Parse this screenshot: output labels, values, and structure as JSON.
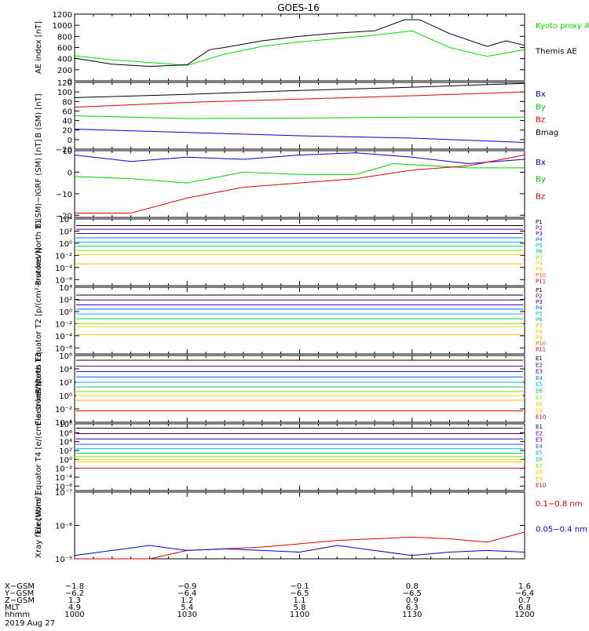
{
  "title": "GOES-16",
  "date": "2019 Aug 27",
  "chart_data": [
    {
      "type": "line",
      "ylabel": "AE index [nT]",
      "ylim": [
        0,
        1200
      ],
      "yticks": [
        {
          "v": 0,
          "label": "0"
        },
        {
          "v": 200,
          "label": "200"
        },
        {
          "v": 400,
          "label": "400"
        },
        {
          "v": 600,
          "label": "600"
        },
        {
          "v": 800,
          "label": "800"
        },
        {
          "v": 1000,
          "label": "1000"
        },
        {
          "v": 1200,
          "label": "1200"
        }
      ],
      "series": [
        {
          "name": "Kyoto proxy AE",
          "color": "#00dd00",
          "x": [
            1000,
            1010,
            1020,
            1030,
            1040,
            1050,
            1100,
            1110,
            1120,
            1130,
            1140,
            1150,
            1200
          ],
          "y": [
            450,
            380,
            330,
            280,
            480,
            620,
            700,
            760,
            820,
            900,
            600,
            440,
            560
          ]
        },
        {
          "name": "Themis AE",
          "color": "#000000",
          "x": [
            1000,
            1010,
            1020,
            1030,
            1036,
            1040,
            1050,
            1100,
            1110,
            1120,
            1128,
            1132,
            1140,
            1150,
            1155,
            1200
          ],
          "y": [
            410,
            300,
            260,
            290,
            560,
            600,
            720,
            800,
            860,
            900,
            1100,
            1100,
            850,
            620,
            720,
            640
          ]
        }
      ]
    },
    {
      "type": "line",
      "ylabel": "B (SM) [nT]",
      "ylim": [
        -20,
        120
      ],
      "yticks": [
        {
          "v": -20,
          "label": "−20"
        },
        {
          "v": 0,
          "label": "0"
        },
        {
          "v": 20,
          "label": "20"
        },
        {
          "v": 40,
          "label": "40"
        },
        {
          "v": 60,
          "label": "60"
        },
        {
          "v": 80,
          "label": "80"
        },
        {
          "v": 100,
          "label": "100"
        },
        {
          "v": 120,
          "label": "120"
        }
      ],
      "series": [
        {
          "name": "Bx",
          "color": "#0000cc",
          "x": [
            1000,
            1030,
            1100,
            1130,
            1200
          ],
          "y": [
            22,
            15,
            8,
            3,
            -6
          ]
        },
        {
          "name": "By",
          "color": "#00cc00",
          "x": [
            1000,
            1030,
            1100,
            1130,
            1200
          ],
          "y": [
            50,
            44,
            45,
            47,
            47
          ]
        },
        {
          "name": "Bz",
          "color": "#dd0000",
          "x": [
            1000,
            1030,
            1100,
            1130,
            1200
          ],
          "y": [
            68,
            78,
            85,
            92,
            100
          ]
        },
        {
          "name": "Bmag",
          "color": "#000000",
          "x": [
            1000,
            1030,
            1100,
            1130,
            1200
          ],
          "y": [
            88,
            95,
            103,
            110,
            118
          ]
        }
      ]
    },
    {
      "type": "line",
      "ylabel": "B (SM)−IGRF (SM) [nT]",
      "ylim": [
        -21,
        10
      ],
      "yticks": [
        {
          "v": -20,
          "label": "−20"
        },
        {
          "v": -10,
          "label": "−10"
        },
        {
          "v": 0,
          "label": "0"
        },
        {
          "v": 10,
          "label": "10"
        }
      ],
      "series": [
        {
          "name": "Bx",
          "color": "#0000cc",
          "x": [
            1000,
            1015,
            1030,
            1045,
            1100,
            1115,
            1130,
            1145,
            1200
          ],
          "y": [
            8,
            5,
            7,
            6,
            8,
            9,
            7,
            4,
            6
          ]
        },
        {
          "name": "By",
          "color": "#00cc00",
          "x": [
            1000,
            1015,
            1030,
            1045,
            1100,
            1115,
            1125,
            1145,
            1200
          ],
          "y": [
            -2,
            -3,
            -5,
            0,
            -1,
            -1,
            4,
            2,
            2
          ]
        },
        {
          "name": "Bz",
          "color": "#dd0000",
          "x": [
            1000,
            1015,
            1030,
            1045,
            1100,
            1115,
            1130,
            1145,
            1200
          ],
          "y": [
            -19,
            -19,
            -12,
            -7,
            -5,
            -3,
            1,
            3,
            8
          ]
        }
      ]
    },
    {
      "type": "line",
      "log": true,
      "ylabel": "Protons North T1",
      "ylim": [
        -7,
        4
      ],
      "yticks": [
        {
          "v": 4,
          "label": "10⁴"
        },
        {
          "v": 2,
          "label": "10²"
        },
        {
          "v": 0,
          "label": "10⁰"
        },
        {
          "v": -2,
          "label": "10⁻²"
        },
        {
          "v": -4,
          "label": "10⁻⁴"
        },
        {
          "v": -6,
          "label": "10⁻⁶"
        }
      ],
      "channels": [
        {
          "name": "P1",
          "color": "#000000",
          "level": 2.9
        },
        {
          "name": "P2",
          "color": "#550088",
          "level": 2.3
        },
        {
          "name": "P3",
          "color": "#2200cc",
          "level": 1.6
        },
        {
          "name": "P4",
          "color": "#0066ff",
          "level": 0.9
        },
        {
          "name": "P5",
          "color": "#00bbdd",
          "level": 0.2
        },
        {
          "name": "P6",
          "color": "#00cc66",
          "level": -0.5
        },
        {
          "name": "P7",
          "color": "#88dd00",
          "level": -1.2
        },
        {
          "name": "P8",
          "color": "#dddd00",
          "level": -1.9
        },
        {
          "name": "P9",
          "color": "#ffbb00",
          "level": -3.4
        },
        {
          "name": "P10",
          "color": "#ff6600",
          "level": null
        },
        {
          "name": "P11",
          "color": "#dd0000",
          "level": null
        }
      ]
    },
    {
      "type": "line",
      "log": true,
      "ylabel": "Protons Equator T2 [p/(cm²-s-sr-keV)]",
      "ylim": [
        -7,
        4
      ],
      "yticks": [
        {
          "v": 4,
          "label": "10⁴"
        },
        {
          "v": 2,
          "label": "10²"
        },
        {
          "v": 0,
          "label": "10⁰"
        },
        {
          "v": -2,
          "label": "10⁻²"
        },
        {
          "v": -4,
          "label": "10⁻⁴"
        },
        {
          "v": -6,
          "label": "10⁻⁶"
        }
      ],
      "channels": [
        {
          "name": "P1",
          "color": "#000000",
          "level": 2.7
        },
        {
          "name": "P2",
          "color": "#550088",
          "level": 1.9
        },
        {
          "name": "P3",
          "color": "#2200cc",
          "level": 1.1
        },
        {
          "name": "P4",
          "color": "#0066ff",
          "level": 0.4
        },
        {
          "name": "P5",
          "color": "#00bbdd",
          "level": -0.4
        },
        {
          "name": "P6",
          "color": "#00cc66",
          "level": -1.2
        },
        {
          "name": "P7",
          "color": "#88dd00",
          "level": -2.0
        },
        {
          "name": "P8",
          "color": "#dddd00",
          "level": -2.5
        },
        {
          "name": "P9",
          "color": "#ffbb00",
          "level": -3.8
        },
        {
          "name": "P10",
          "color": "#ff6600",
          "level": null
        },
        {
          "name": "P11",
          "color": "#dd0000",
          "level": null
        }
      ]
    },
    {
      "type": "line",
      "log": true,
      "ylabel": "Electrons North T3",
      "ylim": [
        -4,
        6
      ],
      "yticks": [
        {
          "v": 6,
          "label": "10⁶"
        },
        {
          "v": 4,
          "label": "10⁴"
        },
        {
          "v": 2,
          "label": "10²"
        },
        {
          "v": 0,
          "label": "10⁰"
        },
        {
          "v": -2,
          "label": "10⁻²"
        },
        {
          "v": -4,
          "label": "10⁻⁴"
        }
      ],
      "channels": [
        {
          "name": "E1",
          "color": "#000000",
          "level": 5.3
        },
        {
          "name": "E2",
          "color": "#550088",
          "level": 4.4
        },
        {
          "name": "E3",
          "color": "#2200cc",
          "level": 3.6
        },
        {
          "name": "E4",
          "color": "#0066ff",
          "level": 2.8
        },
        {
          "name": "E5",
          "color": "#00bbdd",
          "level": 2.0
        },
        {
          "name": "E6",
          "color": "#00cc66",
          "level": 1.3
        },
        {
          "name": "E7",
          "color": "#88dd00",
          "level": 0.6
        },
        {
          "name": "E8",
          "color": "#dddd00",
          "level": 0.0
        },
        {
          "name": "E9",
          "color": "#ffbb00",
          "level": -0.7
        },
        {
          "name": "E10",
          "color": "#dd0000",
          "level": -2.3
        }
      ]
    },
    {
      "type": "line",
      "log": true,
      "ylabel": "Electrons Equator T4 [e/(cm²-s-sr-keV)]",
      "ylim": [
        -7,
        8
      ],
      "yticks": [
        {
          "v": 8,
          "label": "10⁸"
        },
        {
          "v": 6,
          "label": "10⁶"
        },
        {
          "v": 4,
          "label": "10⁴"
        },
        {
          "v": 2,
          "label": "10²"
        },
        {
          "v": 0,
          "label": "10⁰"
        },
        {
          "v": -2,
          "label": "10⁻²"
        },
        {
          "v": -4,
          "label": "10⁻⁴"
        },
        {
          "v": -6,
          "label": "10⁻⁶"
        }
      ],
      "channels": [
        {
          "name": "E1",
          "color": "#000000",
          "level": 7.0
        },
        {
          "name": "E2",
          "color": "#550088",
          "level": 5.8
        },
        {
          "name": "E3",
          "color": "#2200cc",
          "level": 4.6
        },
        {
          "name": "E4",
          "color": "#0066ff",
          "level": 3.4
        },
        {
          "name": "E5",
          "color": "#00bbdd",
          "level": 2.4
        },
        {
          "name": "E6",
          "color": "#00cc66",
          "level": 1.4
        },
        {
          "name": "E7",
          "color": "#88dd00",
          "level": 0.6
        },
        {
          "name": "E8",
          "color": "#dddd00",
          "level": -0.1
        },
        {
          "name": "E9",
          "color": "#ffbb00",
          "level": -0.6
        },
        {
          "name": "E10",
          "color": "#dd0000",
          "level": -2.0
        }
      ]
    },
    {
      "type": "line",
      "log": true,
      "ylabel": "Xray flux [W/m²]",
      "ylim": [
        -9,
        -7
      ],
      "yticks": [
        {
          "v": -7,
          "label": "10⁻⁷"
        },
        {
          "v": -8,
          "label": "10⁻⁸"
        },
        {
          "v": -9,
          "label": "10⁻⁹"
        }
      ],
      "series": [
        {
          "name": "0.1−0.8 nm",
          "color": "#dd0000",
          "x": [
            1000,
            1010,
            1020,
            1030,
            1040,
            1050,
            1100,
            1110,
            1120,
            1130,
            1140,
            1150,
            1200
          ],
          "y": [
            -9.0,
            -9.0,
            -9.0,
            -8.75,
            -8.7,
            -8.65,
            -8.55,
            -8.45,
            -8.4,
            -8.35,
            -8.4,
            -8.5,
            -8.2
          ]
        },
        {
          "name": "0.05−0.4 nm",
          "color": "#0000cc",
          "x": [
            1000,
            1010,
            1020,
            1030,
            1040,
            1050,
            1100,
            1110,
            1120,
            1130,
            1140,
            1150,
            1200
          ],
          "y": [
            -8.9,
            -8.75,
            -8.6,
            -8.75,
            -8.7,
            -8.75,
            -8.8,
            -8.6,
            -8.75,
            -8.9,
            -8.8,
            -8.75,
            -8.8
          ]
        }
      ]
    }
  ],
  "orbit": {
    "labels": [
      "X−GSM",
      "Y−GSM",
      "Z−GSM",
      "MLT",
      "hhmm"
    ],
    "columns": [
      {
        "x": 1000,
        "values": [
          "−1.8",
          "−6.2",
          "1.3",
          "4.9",
          "1000"
        ]
      },
      {
        "x": 1030,
        "values": [
          "−0.9",
          "−6.4",
          "1.2",
          "5.4",
          "1030"
        ]
      },
      {
        "x": 1100,
        "values": [
          "−0.1",
          "−6.5",
          "1.1",
          "5.8",
          "1100"
        ]
      },
      {
        "x": 1130,
        "values": [
          "0.8",
          "−6.5",
          "0.9",
          "6.3",
          "1130"
        ]
      },
      {
        "x": 1200,
        "values": [
          "1.6",
          "−6.4",
          "0.7",
          "6.8",
          "1200"
        ]
      }
    ]
  }
}
